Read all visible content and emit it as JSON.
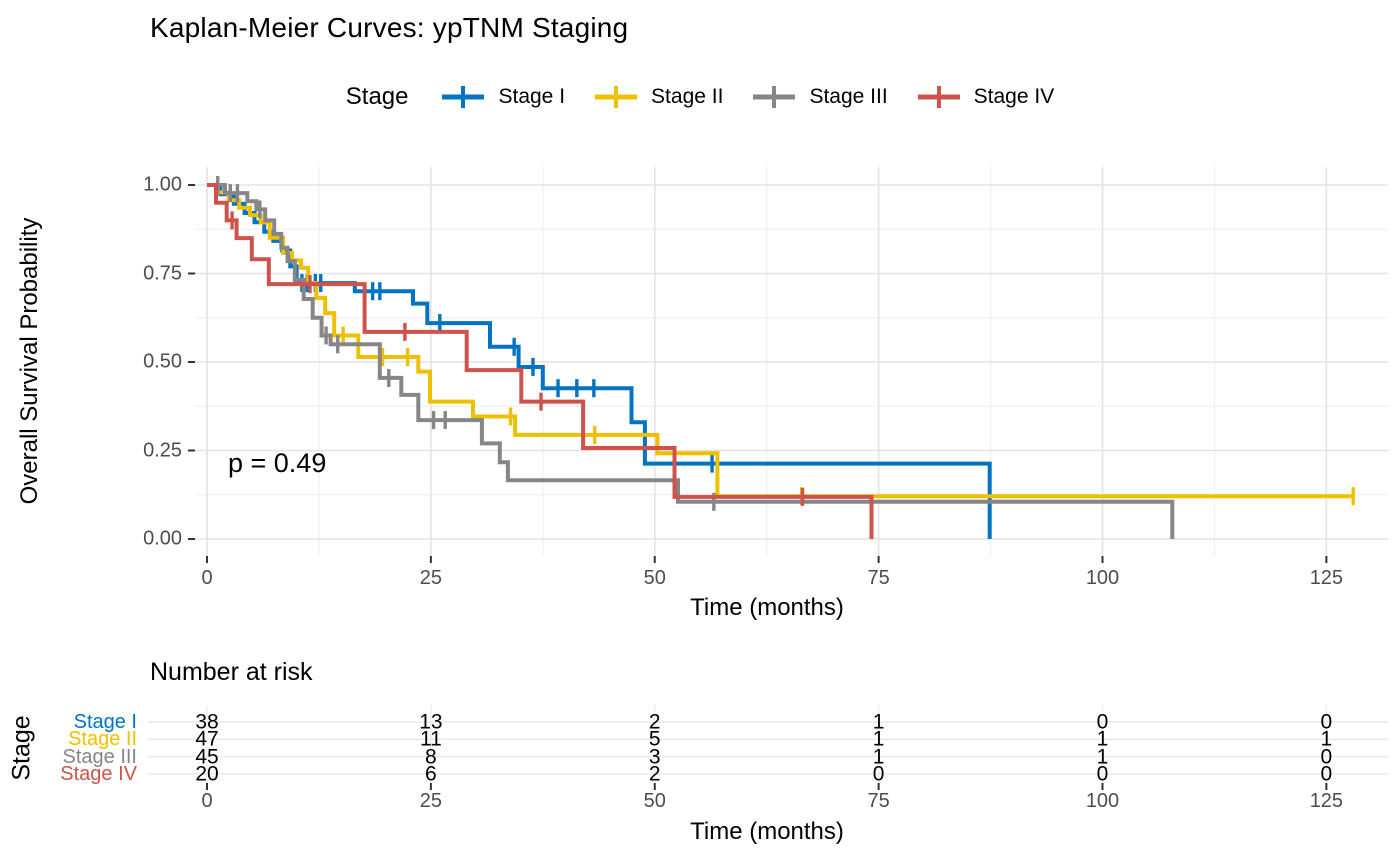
{
  "title": "Kaplan-Meier Curves: ypTNM Staging",
  "legend": {
    "title": "Stage",
    "entries": [
      {
        "label": "Stage I",
        "color": "#0073C2"
      },
      {
        "label": "Stage II",
        "color": "#EFC000"
      },
      {
        "label": "Stage III",
        "color": "#868686"
      },
      {
        "label": "Stage IV",
        "color": "#CD534C"
      }
    ]
  },
  "axes": {
    "x": {
      "label": "Time (months)",
      "tick_labels": [
        "0",
        "25",
        "50",
        "75",
        "100",
        "125"
      ],
      "tick_values": [
        0,
        25,
        50,
        75,
        100,
        125
      ]
    },
    "y": {
      "label": "Overall Survival Probability",
      "tick_labels": [
        "1.00",
        "0.75",
        "0.50",
        "0.25",
        "0.00"
      ],
      "tick_values": [
        1.0,
        0.75,
        0.5,
        0.25,
        0.0
      ]
    }
  },
  "chart_data": {
    "type": "line",
    "subtype": "kaplan-meier-step",
    "title": "Kaplan-Meier Curves: ypTNM Staging",
    "xlabel": "Time (months)",
    "ylabel": "Overall Survival Probability",
    "xlim": [
      0,
      132
    ],
    "ylim": [
      0,
      1.0
    ],
    "grid": true,
    "legend_position": "top",
    "p_value_label": "p = 0.49",
    "series": [
      {
        "name": "Stage I",
        "color": "#0073C2",
        "steps": [
          [
            0,
            1
          ],
          [
            1.5,
            0.974
          ],
          [
            3,
            0.947
          ],
          [
            4.2,
            0.921
          ],
          [
            5.3,
            0.895
          ],
          [
            6.4,
            0.868
          ],
          [
            7.4,
            0.842
          ],
          [
            8.4,
            0.815
          ],
          [
            9.3,
            0.77
          ],
          [
            10,
            0.723
          ],
          [
            16.5,
            0.7
          ],
          [
            23,
            0.665
          ],
          [
            24.6,
            0.61
          ],
          [
            31.6,
            0.543
          ],
          [
            34.8,
            0.486
          ],
          [
            37.5,
            0.426
          ],
          [
            47.4,
            0.33
          ],
          [
            48.9,
            0.213
          ],
          [
            87.4,
            0
          ]
        ],
        "censors": [
          [
            10.6,
            0.723
          ],
          [
            11.2,
            0.723
          ],
          [
            12.1,
            0.723
          ],
          [
            12.7,
            0.723
          ],
          [
            18.5,
            0.7
          ],
          [
            19.3,
            0.7
          ],
          [
            26,
            0.61
          ],
          [
            34.3,
            0.543
          ],
          [
            36.4,
            0.486
          ],
          [
            39.2,
            0.426
          ],
          [
            41.3,
            0.426
          ],
          [
            43.2,
            0.426
          ],
          [
            56.4,
            0.213
          ]
        ]
      },
      {
        "name": "Stage II",
        "color": "#EFC000",
        "steps": [
          [
            0,
            1
          ],
          [
            1.2,
            0.979
          ],
          [
            2.4,
            0.957
          ],
          [
            3.6,
            0.936
          ],
          [
            4.8,
            0.915
          ],
          [
            6,
            0.894
          ],
          [
            7,
            0.851
          ],
          [
            8.5,
            0.808
          ],
          [
            9.5,
            0.787
          ],
          [
            10.5,
            0.766
          ],
          [
            11.3,
            0.723
          ],
          [
            12.2,
            0.681
          ],
          [
            13.2,
            0.638
          ],
          [
            14.2,
            0.575
          ],
          [
            16.9,
            0.514
          ],
          [
            23.6,
            0.473
          ],
          [
            24.9,
            0.388
          ],
          [
            29.7,
            0.346
          ],
          [
            34.4,
            0.294
          ],
          [
            50.3,
            0.242
          ],
          [
            57,
            0.121
          ],
          [
            128,
            0.121
          ]
        ],
        "censors": [
          [
            15.2,
            0.575
          ],
          [
            19.6,
            0.514
          ],
          [
            22.4,
            0.514
          ],
          [
            33.9,
            0.346
          ],
          [
            43.3,
            0.294
          ],
          [
            66.4,
            0.121
          ],
          [
            128,
            0.121
          ]
        ]
      },
      {
        "name": "Stage III",
        "color": "#868686",
        "steps": [
          [
            0,
            1
          ],
          [
            2,
            0.977
          ],
          [
            4.5,
            0.954
          ],
          [
            5.5,
            0.931
          ],
          [
            6.5,
            0.9
          ],
          [
            7.5,
            0.862
          ],
          [
            8.3,
            0.823
          ],
          [
            9,
            0.785
          ],
          [
            9.8,
            0.732
          ],
          [
            10.8,
            0.678
          ],
          [
            11.8,
            0.625
          ],
          [
            12.8,
            0.575
          ],
          [
            13.8,
            0.55
          ],
          [
            19.3,
            0.455
          ],
          [
            21.7,
            0.407
          ],
          [
            23.6,
            0.336
          ],
          [
            30.7,
            0.27
          ],
          [
            32.7,
            0.217
          ],
          [
            33.6,
            0.166
          ],
          [
            52.6,
            0.105
          ],
          [
            107.8,
            0
          ]
        ],
        "censors": [
          [
            1.2,
            1
          ],
          [
            2.6,
            0.977
          ],
          [
            3.4,
            0.977
          ],
          [
            5.9,
            0.931
          ],
          [
            13.3,
            0.575
          ],
          [
            14.6,
            0.55
          ],
          [
            20.3,
            0.455
          ],
          [
            25.3,
            0.336
          ],
          [
            26.6,
            0.336
          ],
          [
            56.6,
            0.105
          ]
        ]
      },
      {
        "name": "Stage IV",
        "color": "#CD534C",
        "steps": [
          [
            0,
            1
          ],
          [
            1,
            0.95
          ],
          [
            2.2,
            0.9
          ],
          [
            3.3,
            0.85
          ],
          [
            5,
            0.79
          ],
          [
            6.9,
            0.72
          ],
          [
            17.6,
            0.585
          ],
          [
            29,
            0.477
          ],
          [
            35.1,
            0.388
          ],
          [
            42,
            0.257
          ],
          [
            52.2,
            0.119
          ],
          [
            74.2,
            0
          ]
        ],
        "censors": [
          [
            2.8,
            0.9
          ],
          [
            11.5,
            0.72
          ],
          [
            22.1,
            0.585
          ],
          [
            37.3,
            0.388
          ],
          [
            66.5,
            0.119
          ]
        ]
      }
    ]
  },
  "risk_table": {
    "title": "Number at risk",
    "y_axis_label": "Stage",
    "xlabel": "Time (months)",
    "time_points": [
      0,
      25,
      50,
      75,
      100,
      125
    ],
    "tick_labels": [
      "0",
      "25",
      "50",
      "75",
      "100",
      "125"
    ],
    "rows": [
      {
        "label": "Stage I",
        "color": "#0073C2",
        "values": [
          38,
          13,
          2,
          1,
          0,
          0
        ]
      },
      {
        "label": "Stage II",
        "color": "#EFC000",
        "values": [
          47,
          11,
          5,
          1,
          1,
          1
        ]
      },
      {
        "label": "Stage III",
        "color": "#868686",
        "values": [
          45,
          8,
          3,
          1,
          1,
          0
        ]
      },
      {
        "label": "Stage IV",
        "color": "#CD534C",
        "values": [
          20,
          6,
          2,
          0,
          0,
          0
        ]
      }
    ]
  },
  "style": {
    "grid_major_color": "#e3e3e3",
    "grid_minor_color": "#f0f0f0",
    "tick_color": "#333333",
    "tick_label_color": "#4d4d4d"
  }
}
